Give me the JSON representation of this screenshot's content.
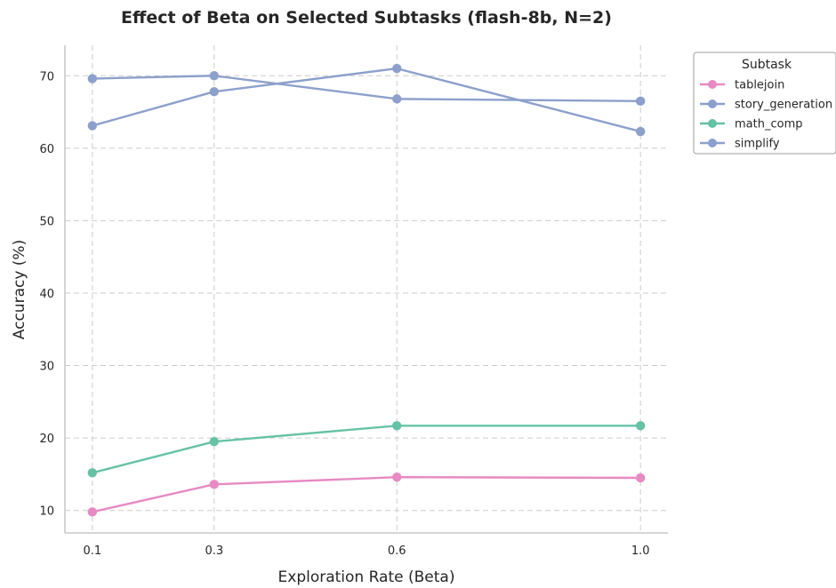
{
  "chart_data": {
    "type": "line",
    "title": "Effect of Beta on Selected Subtasks (flash-8b, N=2)",
    "xlabel": "Exploration Rate (Beta)",
    "ylabel": "Accuracy (%)",
    "x": [
      0.1,
      0.3,
      0.6,
      1.0
    ],
    "x_tick_labels": [
      "0.1",
      "0.3",
      "0.6",
      "1.0"
    ],
    "xlim": [
      0.055,
      1.045
    ],
    "ylim": [
      6.9,
      74.2
    ],
    "y_ticks": [
      10,
      20,
      30,
      40,
      50,
      60,
      70
    ],
    "grid": true,
    "legend": {
      "title": "Subtask",
      "placement": "outside-top-right"
    },
    "series": [
      {
        "name": "tablejoin",
        "color": "#e78ac3",
        "values": [
          9.8,
          13.6,
          14.6,
          14.5
        ]
      },
      {
        "name": "story_generation",
        "color": "#8da0cb",
        "values": [
          63.1,
          67.8,
          71.0,
          62.3
        ]
      },
      {
        "name": "math_comp",
        "color": "#66c2a5",
        "values": [
          15.2,
          19.5,
          21.7,
          21.7
        ]
      },
      {
        "name": "simplify",
        "color": "#8da0cb",
        "values": [
          69.6,
          70.0,
          66.8,
          66.5
        ]
      }
    ]
  }
}
